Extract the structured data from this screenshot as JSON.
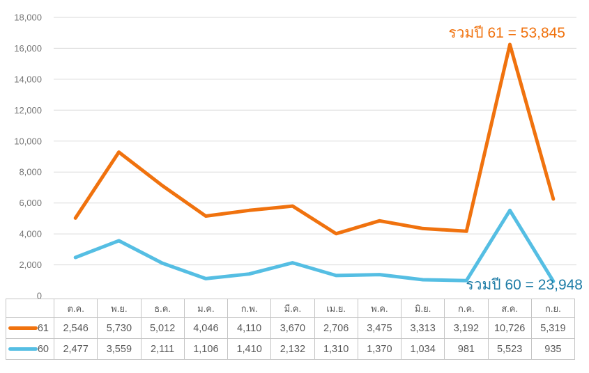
{
  "chart_data": {
    "type": "line",
    "stacked": true,
    "categories": [
      "ต.ค.",
      "พ.ย.",
      "ธ.ค.",
      "ม.ค.",
      "ก.พ.",
      "มี.ค.",
      "เม.ย.",
      "พ.ค.",
      "มิ.ย.",
      "ก.ค.",
      "ส.ค.",
      "ก.ย."
    ],
    "series": [
      {
        "name": "61",
        "color": "#F0720E",
        "values": [
          2546,
          5730,
          5012,
          4046,
          4110,
          3670,
          2706,
          3475,
          3313,
          3192,
          10726,
          5319
        ],
        "total": 53845
      },
      {
        "name": "60",
        "color": "#55BEE3",
        "values": [
          2477,
          3559,
          2111,
          1106,
          1410,
          2132,
          1310,
          1370,
          1034,
          981,
          5523,
          935
        ],
        "total": 23948
      }
    ],
    "ylim": [
      0,
      18000
    ],
    "ytick_step": 2000,
    "ytick_labels": [
      "0",
      "2,000",
      "4,000",
      "6,000",
      "8,000",
      "10,000",
      "12,000",
      "14,000",
      "16,000",
      "18,000"
    ],
    "grid": "horizontal-only",
    "gridline_color": "#dadada",
    "axis_label_color": "#757575",
    "legend_position": "table-left",
    "annotations": [
      {
        "text": "รวมปี 61 = 53,845",
        "color": "#F0720E"
      },
      {
        "text": "รวมปี 60 = 23,948",
        "color": "#1E7CA6"
      }
    ],
    "xlabel": "",
    "ylabel": "",
    "title": ""
  }
}
